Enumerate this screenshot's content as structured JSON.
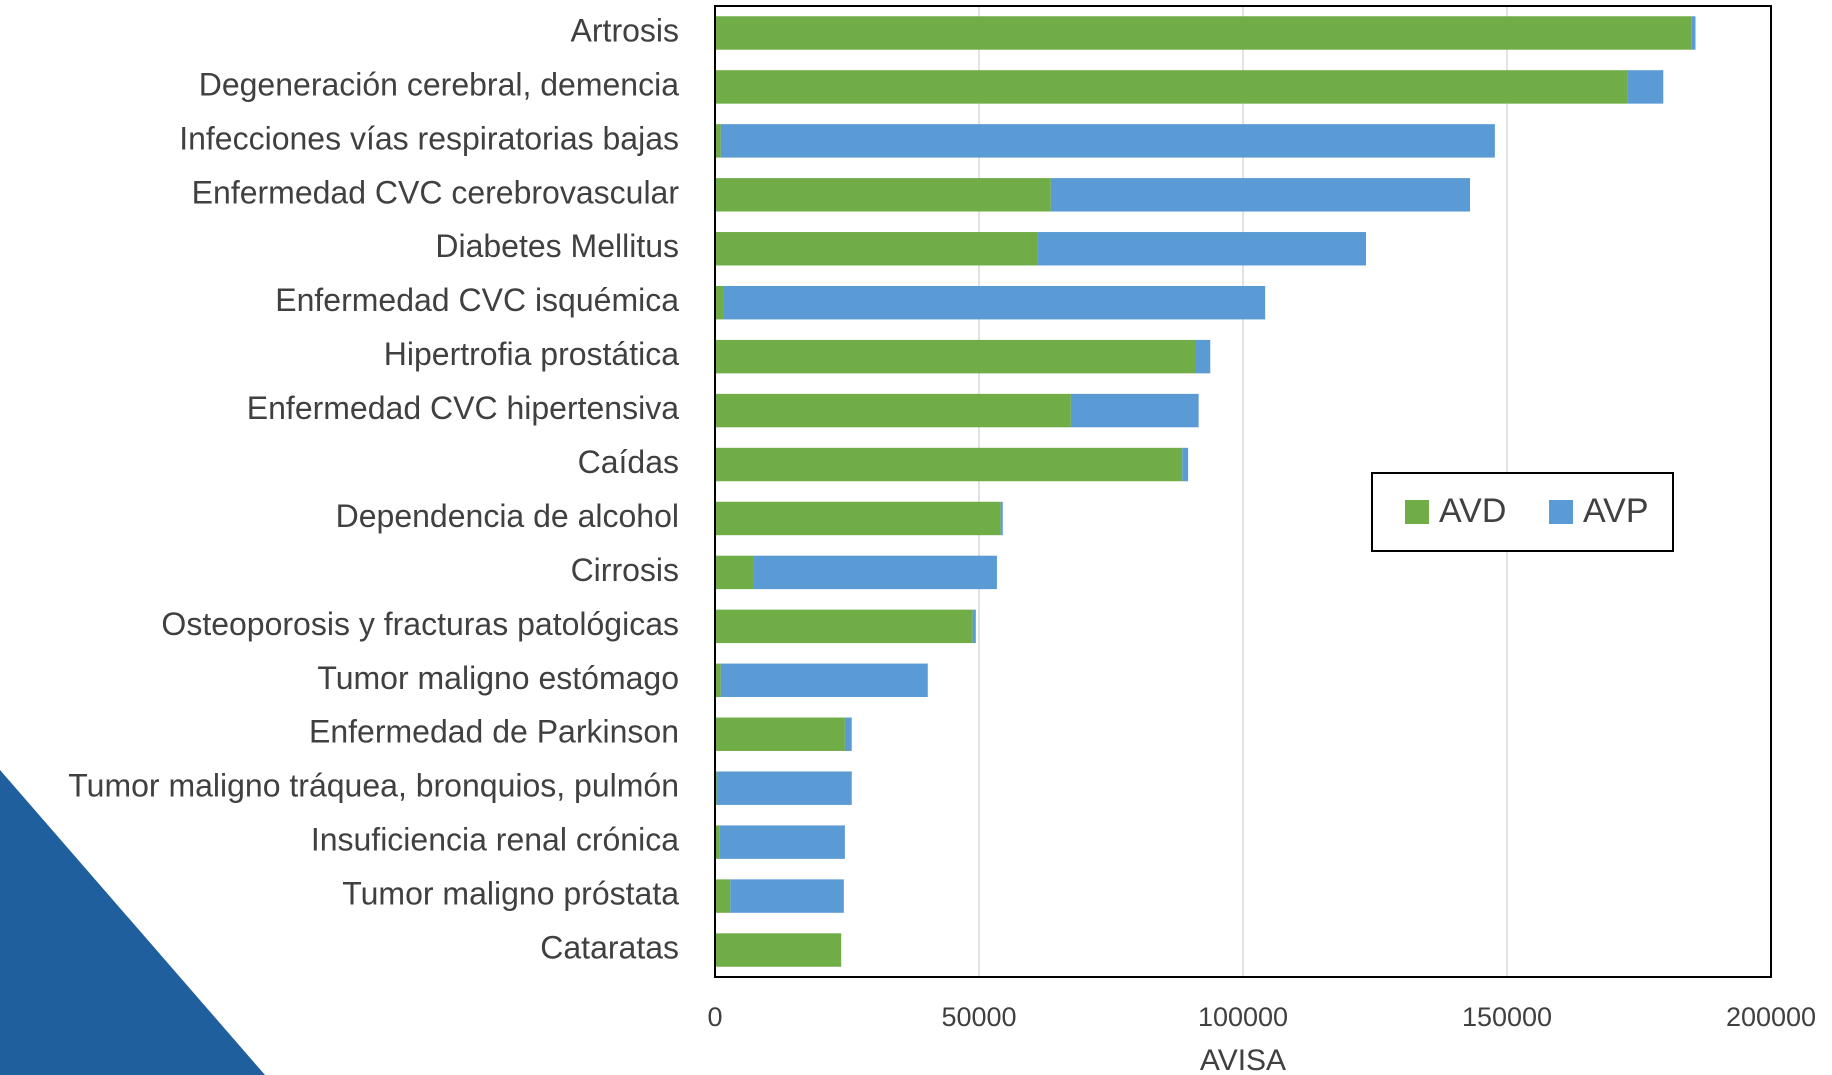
{
  "chart_data": {
    "type": "stacked-barh",
    "categories": [
      "Artrosis",
      "Degeneración cerebral, demencia",
      "Infecciones vías respiratorias bajas",
      "Enfermedad CVC cerebrovascular",
      "Diabetes Mellitus",
      "Enfermedad CVC isquémica",
      "Hipertrofia prostática",
      "Enfermedad CVC hipertensiva",
      "Caídas",
      "Dependencia de alcohol",
      "Cirrosis",
      "Osteoporosis y fracturas patológicas",
      "Tumor maligno estómago",
      "Enfermedad de Parkinson",
      "Tumor maligno tráquea, bronquios, pulmón",
      "Insuficiencia renal crónica",
      "Tumor maligno próstata",
      "Cataratas"
    ],
    "series": [
      {
        "name": "AVD",
        "color": "#70ad47",
        "values": [
          185000,
          172900,
          1100,
          63600,
          61000,
          1600,
          91100,
          67400,
          88500,
          54100,
          7300,
          48800,
          1100,
          24600,
          300,
          900,
          2900,
          23900
        ]
      },
      {
        "name": "AVP",
        "color": "#5b9bd5",
        "values": [
          700,
          6700,
          146600,
          79400,
          62300,
          102600,
          2700,
          24200,
          1100,
          400,
          46100,
          600,
          39200,
          1300,
          25600,
          23700,
          21500,
          0
        ]
      }
    ],
    "x_label": "AVISA",
    "xlim": [
      0,
      200000
    ],
    "xticks": [
      0,
      50000,
      100000,
      150000,
      200000
    ],
    "grid": true
  }
}
